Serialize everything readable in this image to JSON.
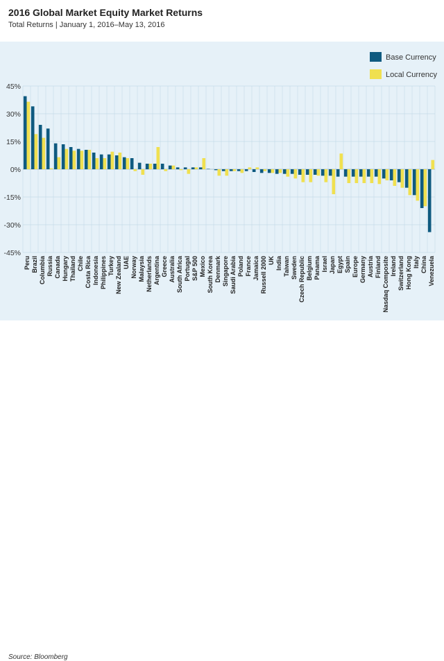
{
  "header": {
    "title": "2016 Global Market Equity Market Returns",
    "subtitle": "Total Returns | January 1, 2016–May 13, 2016"
  },
  "footer": {
    "source": "Source: Bloomberg"
  },
  "colors": {
    "base": "#0f5a80",
    "local": "#f0e050",
    "panel_bg": "#e6f1f8",
    "grid": "#c5dbe8"
  },
  "chart_data": {
    "type": "bar",
    "legend_position": "top-right",
    "grid": true,
    "ylim": [
      -45,
      45
    ],
    "yticks": [
      45,
      30,
      15,
      0,
      -15,
      -30,
      -45
    ],
    "ytick_labels": [
      "45%",
      "30%",
      "15%",
      "0%",
      "-15%",
      "-30%",
      "-45%"
    ],
    "categories": [
      "Peru",
      "Brazil",
      "Columbia",
      "Russia",
      "Canada",
      "Hungary",
      "Thailand",
      "Chile",
      "Costa Rica",
      "Indonesia",
      "Philippines",
      "Turkey",
      "New Zealand",
      "UAE",
      "Norway",
      "Malaysia",
      "Netherlands",
      "Argentina",
      "Greece",
      "Australia",
      "South Africa",
      "Portugal",
      "S&P 500",
      "Mexico",
      "South Korea",
      "Denmark",
      "Singapore",
      "Saudi Arabia",
      "Poland",
      "France",
      "Jamaica",
      "Russell 2000",
      "UK",
      "India",
      "Taiwan",
      "Sweden",
      "Czech Republic",
      "Belgium",
      "Panama",
      "Israel",
      "Japan",
      "Egypt",
      "Spain",
      "Europe",
      "Germany",
      "Austria",
      "Finland",
      "Nasdaq Composite",
      "Ireland",
      "Switzerland",
      "Hong Kong",
      "Italy",
      "China",
      "Venezuela"
    ],
    "series": [
      {
        "name": "Base Currency",
        "values": [
          39.5,
          34,
          24,
          22,
          14,
          13.5,
          12,
          11,
          10.5,
          9,
          8,
          8,
          7.5,
          6.5,
          6,
          3.5,
          3,
          3,
          3,
          2,
          1,
          1,
          1,
          1,
          0.2,
          -0.5,
          -1,
          -1,
          -1,
          -1,
          -1.5,
          -2,
          -2,
          -2.5,
          -2.5,
          -2.5,
          -3,
          -3,
          -3,
          -3.5,
          -3.5,
          -4,
          -4,
          -4,
          -4,
          -4,
          -4,
          -5,
          -6,
          -7,
          -10,
          -14,
          -21,
          -34
        ]
      },
      {
        "name": "Local Currency",
        "values": [
          36.5,
          19,
          17,
          0.5,
          6.5,
          11,
          10,
          10,
          10.5,
          6,
          6,
          9.5,
          9,
          6,
          -1,
          -3,
          3,
          12,
          -1,
          2,
          -0.5,
          -2.5,
          1,
          6,
          0,
          -3.5,
          -3.5,
          -1,
          -2,
          1,
          1,
          -1,
          -2,
          -2,
          -4,
          -5,
          -7,
          -7,
          -3.5,
          -7,
          -13.5,
          8.5,
          -7.5,
          -7.5,
          -7.5,
          -7.5,
          -8,
          -6,
          -9,
          -10,
          -14,
          -17,
          -20,
          5
        ]
      }
    ]
  }
}
